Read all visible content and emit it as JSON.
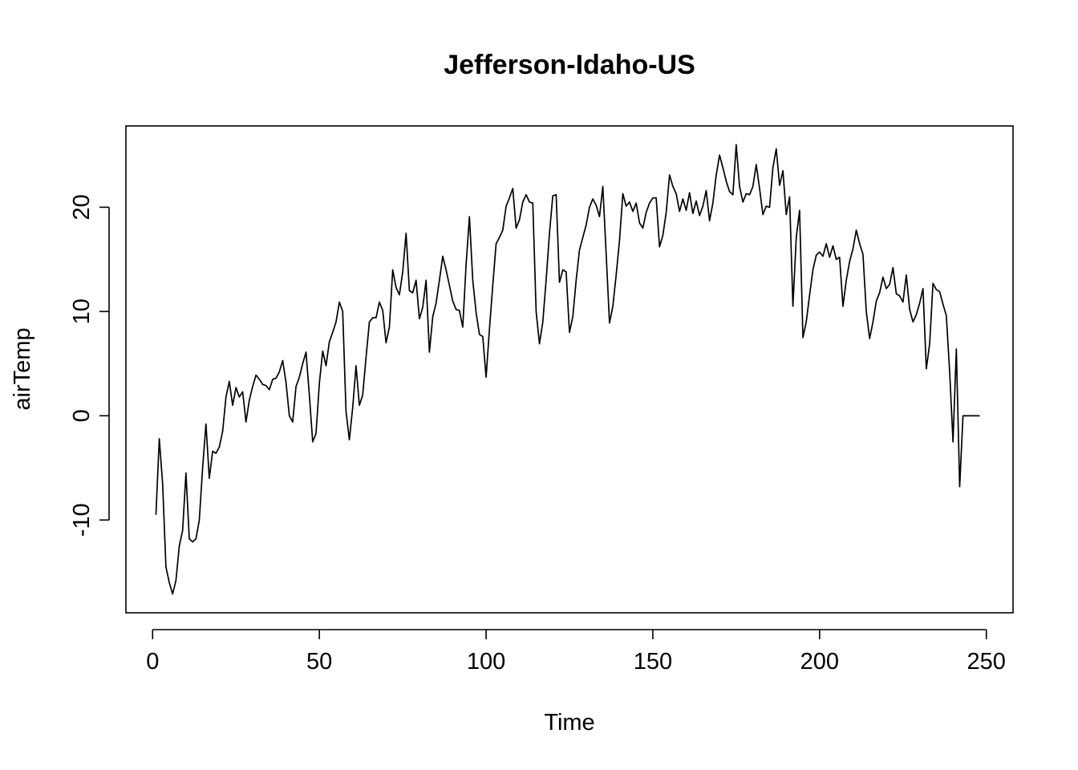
{
  "chart_data": {
    "type": "line",
    "title": "Jefferson-Idaho-US",
    "xlabel": "Time",
    "ylabel": "airTemp",
    "xlim": [
      -8,
      258
    ],
    "ylim": [
      -18.9,
      27.8
    ],
    "x_ticks": [
      0,
      50,
      100,
      150,
      200,
      250
    ],
    "y_ticks": [
      -10,
      0,
      10,
      20
    ],
    "x_tick_labels": [
      "0",
      "50",
      "100",
      "150",
      "200",
      "250"
    ],
    "y_tick_labels": [
      "-10",
      "0",
      "10",
      "20"
    ],
    "grid": false,
    "legend": "none",
    "line_color": "#000000",
    "series": [
      {
        "x_start": 1,
        "x_step": 1,
        "values": [
          -9.5,
          -2.2,
          -6.5,
          -14.5,
          -16.0,
          -17.1,
          -15.8,
          -12.5,
          -11.0,
          -5.5,
          -11.8,
          -12.1,
          -11.8,
          -10.0,
          -5.0,
          -0.8,
          -6.0,
          -3.4,
          -3.6,
          -3.0,
          -1.5,
          1.8,
          3.3,
          1.0,
          2.7,
          1.8,
          2.3,
          -0.6,
          1.5,
          2.8,
          3.9,
          3.5,
          3.0,
          2.9,
          2.5,
          3.5,
          3.6,
          4.2,
          5.3,
          3.2,
          0.0,
          -0.6,
          2.8,
          3.7,
          5.0,
          6.1,
          2.0,
          -2.5,
          -1.7,
          3.1,
          6.2,
          4.8,
          7.1,
          8.0,
          9.0,
          10.9,
          10.0,
          0.4,
          -2.3,
          0.8,
          4.8,
          1.0,
          2.0,
          5.6,
          9.0,
          9.4,
          9.4,
          10.9,
          10.1,
          7.0,
          8.5,
          14.0,
          12.3,
          11.6,
          13.8,
          17.5,
          12.0,
          11.8,
          13.0,
          9.3,
          10.4,
          13.0,
          6.1,
          9.5,
          10.8,
          13.0,
          15.3,
          14.0,
          12.5,
          11.0,
          10.2,
          10.1,
          8.5,
          14.5,
          19.1,
          13.0,
          9.9,
          7.8,
          7.6,
          3.7,
          8.3,
          12.5,
          16.5,
          17.1,
          17.8,
          20.1,
          20.9,
          21.8,
          18.0,
          18.8,
          20.5,
          21.2,
          20.5,
          20.4,
          10.0,
          6.9,
          9.0,
          13.0,
          17.5,
          21.1,
          21.2,
          12.8,
          14.0,
          13.8,
          8.0,
          9.5,
          13.0,
          15.9,
          17.1,
          18.3,
          20.0,
          20.8,
          20.2,
          19.1,
          22.0,
          15.5,
          8.9,
          10.5,
          13.5,
          16.8,
          21.3,
          20.1,
          20.5,
          19.6,
          20.4,
          18.5,
          18.0,
          19.5,
          20.4,
          20.9,
          20.9,
          16.2,
          17.3,
          19.5,
          23.1,
          22.0,
          21.3,
          19.6,
          20.8,
          19.7,
          21.4,
          19.4,
          20.6,
          19.2,
          20.1,
          21.6,
          18.7,
          20.4,
          23.1,
          25.0,
          23.8,
          22.5,
          21.5,
          21.2,
          26.0,
          22.0,
          20.5,
          21.3,
          21.2,
          22.0,
          24.1,
          21.8,
          19.3,
          20.1,
          20.0,
          23.8,
          25.6,
          22.1,
          23.5,
          19.3,
          21.0,
          10.5,
          17.1,
          19.7,
          7.5,
          9.0,
          11.6,
          14.0,
          15.4,
          15.7,
          15.3,
          16.5,
          15.2,
          16.3,
          15.0,
          15.2,
          10.5,
          13.0,
          14.8,
          16.0,
          17.8,
          16.5,
          15.5,
          10.0,
          7.4,
          9.0,
          11.0,
          11.8,
          13.3,
          12.2,
          12.6,
          14.2,
          11.7,
          11.5,
          10.9,
          13.5,
          10.2,
          9.0,
          9.7,
          10.8,
          12.2,
          4.5,
          6.9,
          12.7,
          12.1,
          11.9,
          10.7,
          9.6,
          4.2,
          -2.5,
          6.4,
          -6.8,
          0.0,
          0.0,
          0.0,
          0.0,
          0.0,
          0.0
        ]
      }
    ]
  }
}
